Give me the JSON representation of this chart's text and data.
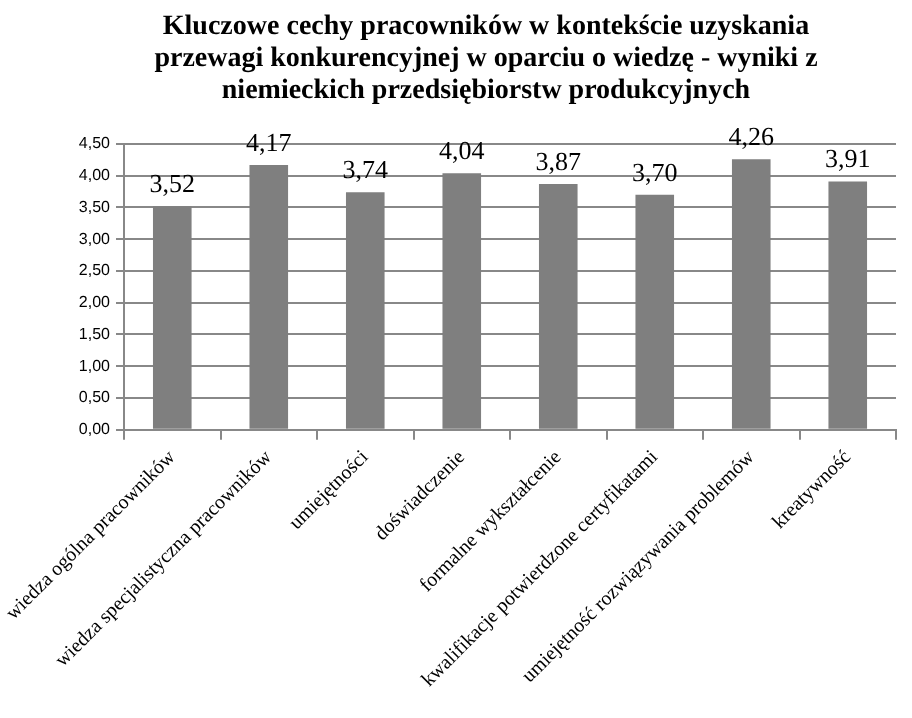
{
  "chart_data": {
    "type": "bar",
    "title": "Kluczowe cechy pracowników w kontekście uzyskania przewagi konkurencyjnej w oparciu o wiedzę - wyniki z niemieckich przedsiębiorstw produkcyjnych",
    "categories": [
      "wiedza ogólna pracowników",
      "wiedza specjalistyczna pracowników",
      "umiejętności",
      "doświadczenie",
      "formalne wykształcenie",
      "kwalifikacje potwierdzone certyfikatami",
      "umiejętność rozwiązywania problemów",
      "kreatywność"
    ],
    "values": [
      3.52,
      4.17,
      3.74,
      4.04,
      3.87,
      3.7,
      4.26,
      3.91
    ],
    "value_labels": [
      "3,52",
      "4,17",
      "3,74",
      "4,04",
      "3,87",
      "3,70",
      "4,26",
      "3,91"
    ],
    "color": "#7f7f7f",
    "ylim": [
      0,
      4.5
    ],
    "yticks": [
      {
        "value": 0,
        "label": "0,00"
      },
      {
        "value": 0.5,
        "label": "0,50"
      },
      {
        "value": 1,
        "label": "1,00"
      },
      {
        "value": 1.5,
        "label": "1,50"
      },
      {
        "value": 2,
        "label": "2,00"
      },
      {
        "value": 2.5,
        "label": "2,50"
      },
      {
        "value": 3,
        "label": "3,00"
      },
      {
        "value": 3.5,
        "label": "3,50"
      },
      {
        "value": 4,
        "label": "4,00"
      },
      {
        "value": 4.5,
        "label": "4,50"
      }
    ],
    "grid": "y",
    "legend": false
  }
}
